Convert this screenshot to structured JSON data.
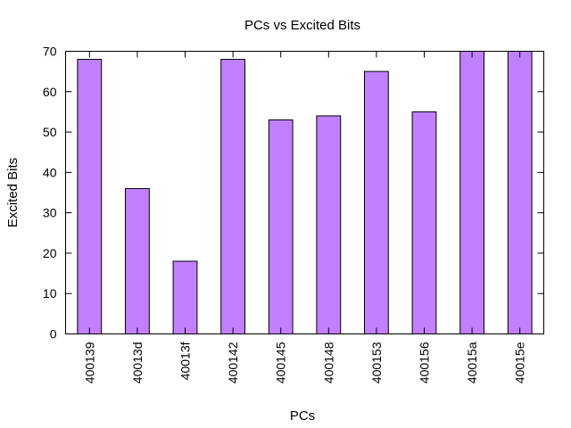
{
  "chart_data": {
    "type": "bar",
    "title": "PCs vs Excited Bits",
    "xlabel": "PCs",
    "ylabel": "Excited Bits",
    "categories": [
      "400139",
      "40013d",
      "40013f",
      "400142",
      "400145",
      "400148",
      "400153",
      "400156",
      "40015a",
      "40015e"
    ],
    "values": [
      68,
      36,
      18,
      68,
      53,
      54,
      65,
      55,
      70,
      70
    ],
    "ylim": [
      0,
      70
    ],
    "yticks": [
      0,
      10,
      20,
      30,
      40,
      50,
      60,
      70
    ],
    "bar_color": "#c080ff",
    "bar_edge_color": "#000000",
    "grid": false,
    "legend": "none"
  }
}
